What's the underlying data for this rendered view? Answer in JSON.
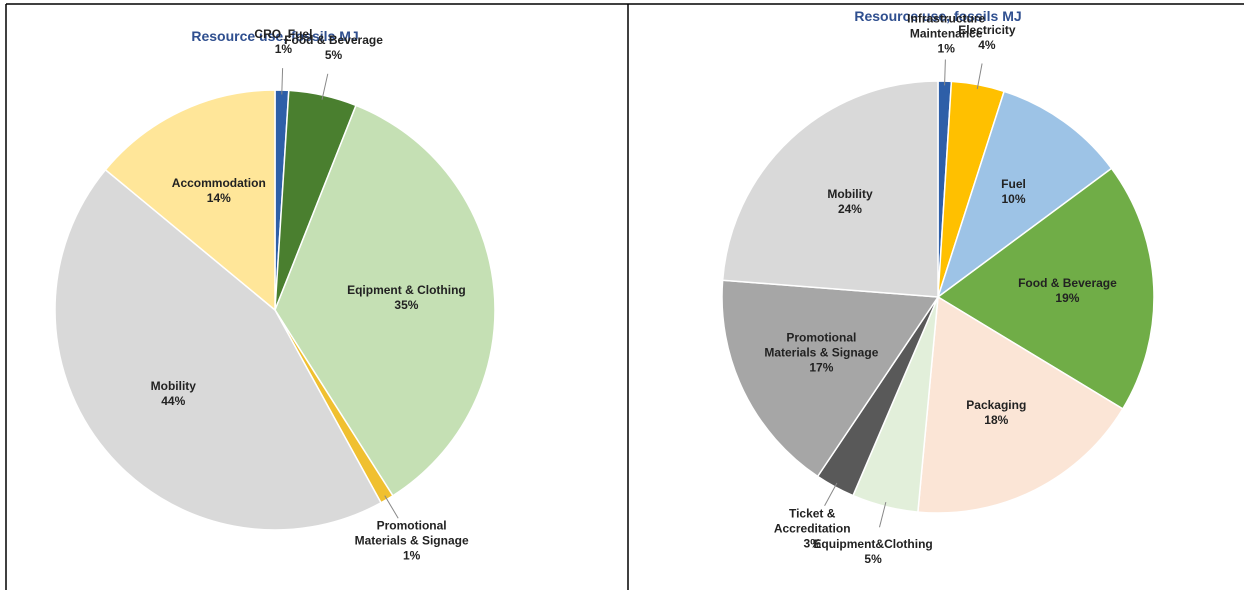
{
  "chart_data": [
    {
      "type": "pie",
      "title": "Resource use, fossils  MJ",
      "categories": [
        "CRO_Fuel",
        "Food & Beverage",
        "Eqipment & Clothing",
        "Promotional Materials & Signage",
        "Mobility",
        "Accommodation"
      ],
      "values": [
        1,
        5,
        35,
        1,
        44,
        14
      ],
      "value_labels": [
        "1%",
        "5%",
        "35%",
        "1%",
        "44%",
        "14%"
      ],
      "colors": [
        "#2e5fa8",
        "#4a7f2f",
        "#c5e0b4",
        "#f0c030",
        "#d9d9d9",
        "#ffe699"
      ]
    },
    {
      "type": "pie",
      "title": "Resource use, fossils MJ",
      "categories": [
        "Infrastructure Maintenance",
        "Electricity",
        "Fuel",
        "Food & Beverage",
        "Packaging",
        "Equipment&Clothing",
        "Ticket & Accreditation",
        "Promotional Materials & Signage",
        "Mobility"
      ],
      "values": [
        1,
        4,
        10,
        19,
        18,
        5,
        3,
        17,
        24
      ],
      "value_labels": [
        "1%",
        "4%",
        "10%",
        "19%",
        "18%",
        "5%",
        "3%",
        "17%",
        "24%"
      ],
      "colors": [
        "#2e5fa8",
        "#ffc000",
        "#9dc3e6",
        "#70ad47",
        "#fbe5d6",
        "#e2efda",
        "#595959",
        "#a6a6a6",
        "#d9d9d9"
      ]
    }
  ]
}
